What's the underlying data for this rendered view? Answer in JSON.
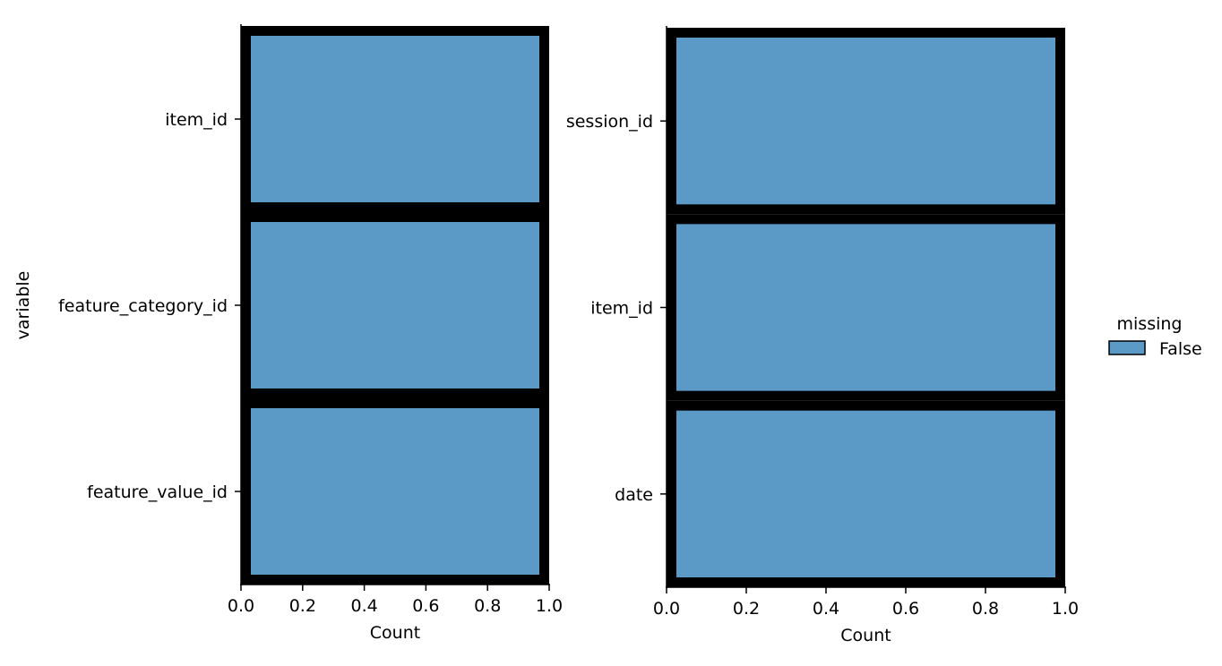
{
  "colors": {
    "bar_fill": "#5b9ac6",
    "bar_edge": "#000000",
    "axis": "#000000"
  },
  "legend": {
    "title": "missing",
    "entries": [
      {
        "label": "False",
        "color": "#5b9ac6"
      }
    ]
  },
  "chart_data": [
    {
      "type": "bar",
      "orientation": "horizontal",
      "categories": [
        "item_id",
        "feature_category_id",
        "feature_value_id"
      ],
      "series": [
        {
          "name": "False",
          "values": [
            1.0,
            1.0,
            1.0
          ]
        }
      ],
      "xlabel": "Count",
      "ylabel": "variable",
      "xlim": [
        0.0,
        1.0
      ],
      "xticks": [
        "0.0",
        "0.2",
        "0.4",
        "0.6",
        "0.8",
        "1.0"
      ],
      "grid": false
    },
    {
      "type": "bar",
      "orientation": "horizontal",
      "categories": [
        "session_id",
        "item_id",
        "date"
      ],
      "series": [
        {
          "name": "False",
          "values": [
            1.0,
            1.0,
            1.0
          ]
        }
      ],
      "xlabel": "Count",
      "ylabel": "",
      "xlim": [
        0.0,
        1.0
      ],
      "xticks": [
        "0.0",
        "0.2",
        "0.4",
        "0.6",
        "0.8",
        "1.0"
      ],
      "grid": false
    }
  ]
}
